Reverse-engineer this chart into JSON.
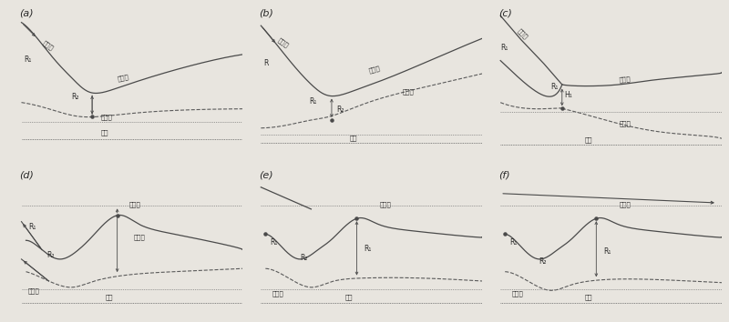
{
  "panels": [
    "(a)",
    "(b)",
    "(c)",
    "(d)",
    "(e)",
    "(f)"
  ],
  "bg_color": "#e8e5df",
  "line_color": "#4a4a4a",
  "dot_color": "#7a7a7a",
  "dash_color": "#5a5a5a",
  "text_color": "#2a2a2a",
  "label_fontsize": 5.5,
  "panel_label_fontsize": 8
}
